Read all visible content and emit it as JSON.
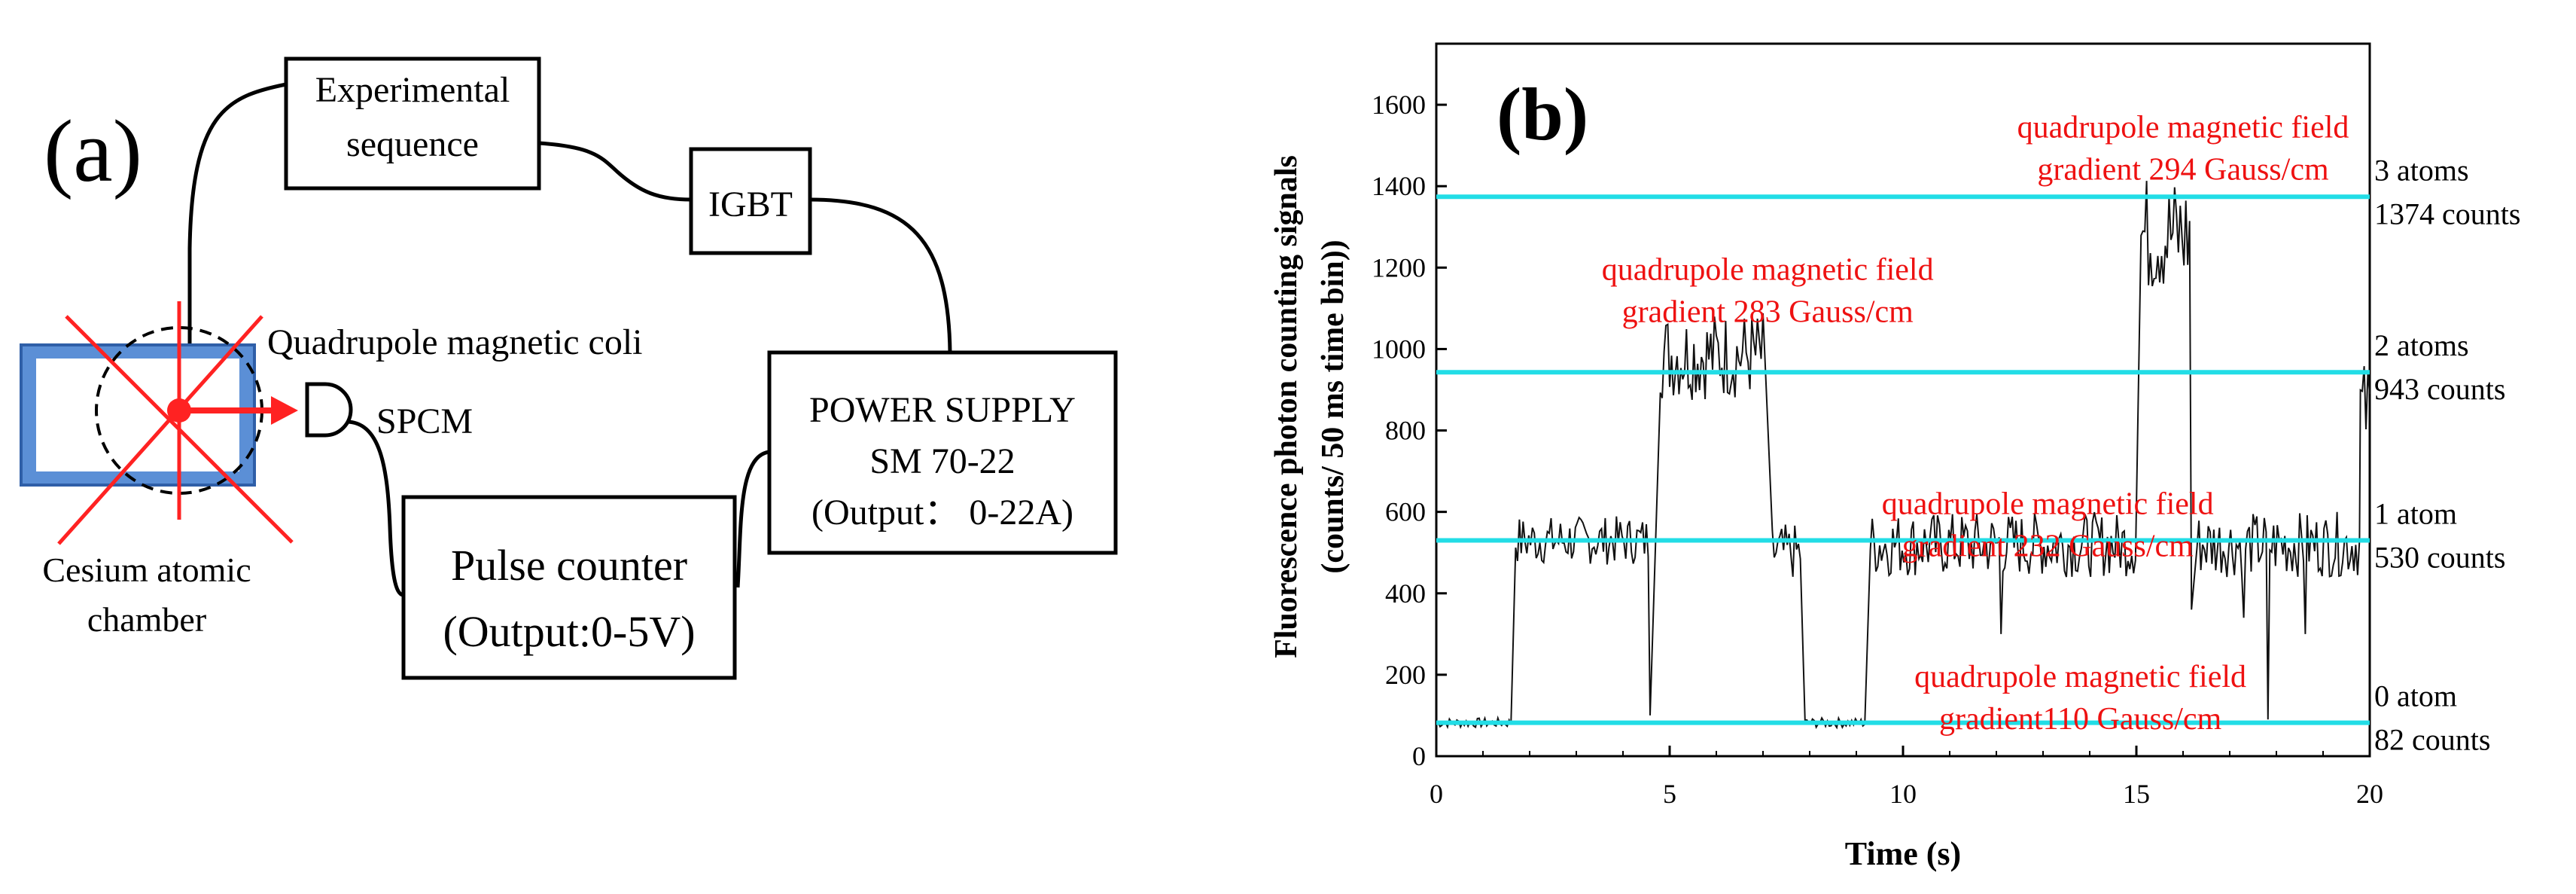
{
  "panel_a": {
    "label": "(a)",
    "experimental_sequence": [
      "Experimental",
      "sequence"
    ],
    "igbt": "IGBT",
    "power_supply": [
      "POWER SUPPLY",
      "SM 70-22",
      "(Output： 0-22A)"
    ],
    "pulse_counter": [
      "Pulse counter",
      "(Output:0-5V)"
    ],
    "quadrupole_label": "Quadrupole magnetic coli",
    "spcm_label": "SPCM",
    "chamber_label": [
      "Cesium atomic",
      "chamber"
    ]
  },
  "chart_data": {
    "type": "line",
    "panel_label": "(b)",
    "title": "",
    "xlabel": "Time (s)",
    "ylabel": [
      "Fluorescence photon counting signals",
      "(counts/ 50 ms time bin))"
    ],
    "xlim": [
      0,
      20
    ],
    "ylim": [
      0,
      1750
    ],
    "x_ticks": [
      0,
      5,
      10,
      15,
      20
    ],
    "y_ticks": [
      0,
      200,
      400,
      600,
      800,
      1000,
      1200,
      1400,
      1600
    ],
    "grid": false,
    "levels": [
      {
        "value": 82,
        "atoms": "0 atom",
        "counts": "82 counts"
      },
      {
        "value": 530,
        "atoms": "1 atom",
        "counts": "530 counts"
      },
      {
        "value": 943,
        "atoms": "2 atoms",
        "counts": "943 counts"
      },
      {
        "value": 1374,
        "atoms": "3 atoms",
        "counts": "1374 counts"
      }
    ],
    "annotations": [
      {
        "lines": [
          "quadrupole magnetic field",
          "gradient 294 Gauss/cm"
        ],
        "x": 16.0,
        "y": 1520
      },
      {
        "lines": [
          "quadrupole magnetic field",
          "gradient 283 Gauss/cm"
        ],
        "x": 7.1,
        "y": 1170
      },
      {
        "lines": [
          "quadrupole magnetic field",
          "gradient 232 Gauss/cm"
        ],
        "x": 13.1,
        "y": 595
      },
      {
        "lines": [
          "quadrupole magnetic field",
          "gradient110 Gauss/cm"
        ],
        "x": 13.8,
        "y": 170
      }
    ],
    "series": [
      {
        "name": "fluorescence signal",
        "segments": [
          {
            "start": 0.0,
            "end": 1.6,
            "level": 82,
            "noise": 12
          },
          {
            "start": 1.7,
            "end": 4.6,
            "level": 530,
            "noise": 60
          },
          {
            "start": 4.8,
            "end": 7.0,
            "level": 985,
            "noise": 110
          },
          {
            "start": 7.2,
            "end": 7.8,
            "level": 500,
            "noise": 70
          },
          {
            "start": 7.9,
            "end": 9.2,
            "level": 82,
            "noise": 12
          },
          {
            "start": 9.3,
            "end": 15.0,
            "level": 520,
            "noise": 80
          },
          {
            "start": 15.1,
            "end": 16.2,
            "level": 1280,
            "noise": 150
          },
          {
            "start": 16.3,
            "end": 19.8,
            "level": 520,
            "noise": 80
          },
          {
            "start": 19.8,
            "end": 20.0,
            "level": 850,
            "noise": 120
          }
        ],
        "dips": [
          {
            "x": 4.6,
            "y": 100
          },
          {
            "x": 12.1,
            "y": 300
          },
          {
            "x": 16.2,
            "y": 360
          },
          {
            "x": 17.3,
            "y": 340
          },
          {
            "x": 17.8,
            "y": 90
          },
          {
            "x": 18.6,
            "y": 300
          }
        ]
      }
    ]
  }
}
